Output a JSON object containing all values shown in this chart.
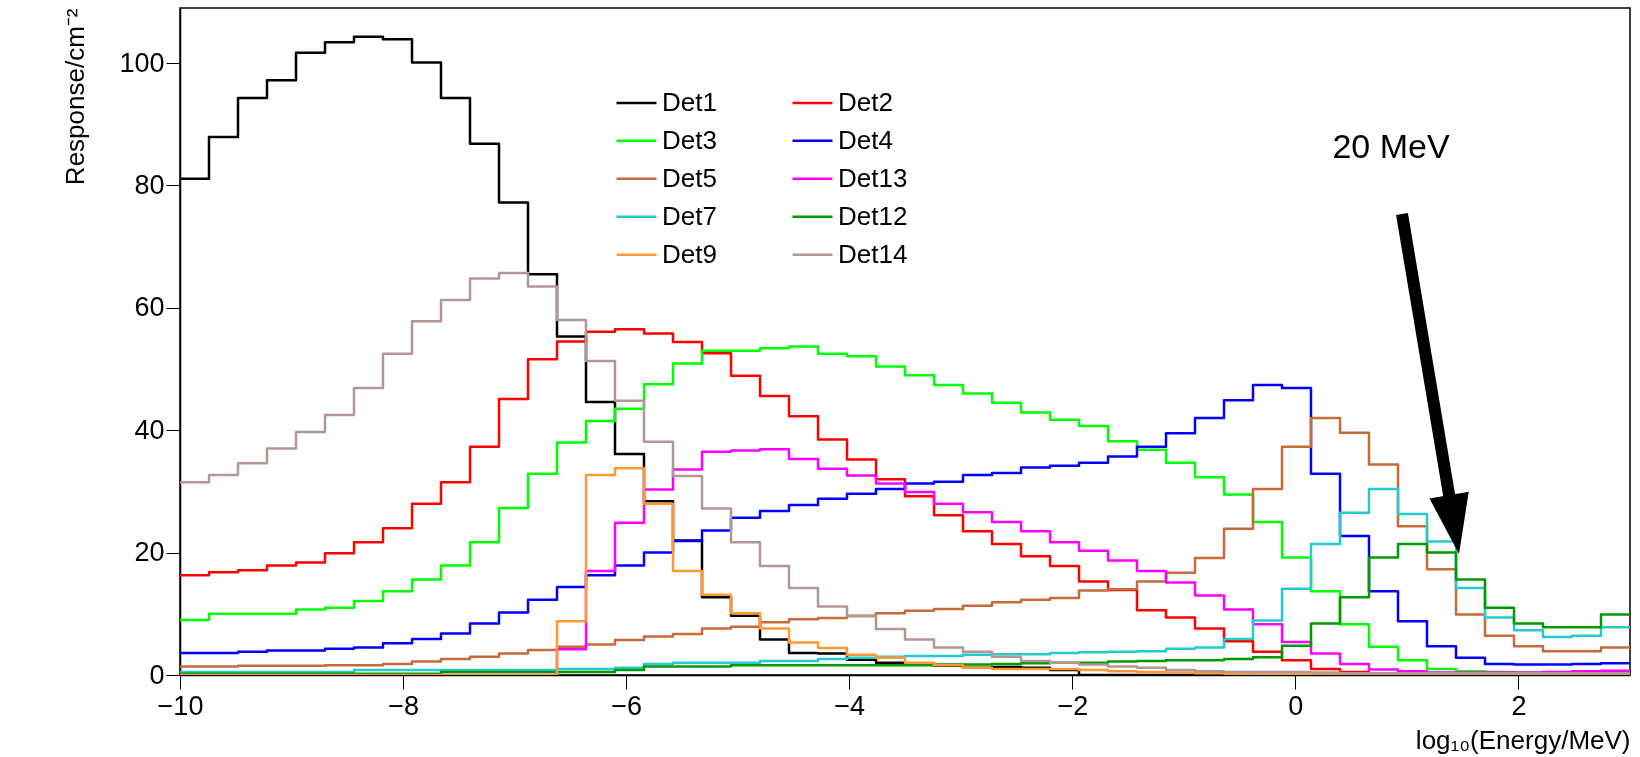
{
  "chart_data": {
    "type": "histogram",
    "xlabel": "log₁₀(Energy/MeV)",
    "ylabel": "Response/cm⁻²",
    "xlim": [
      -10,
      3
    ],
    "ylim": [
      0,
      109
    ],
    "xticks": [
      -10,
      -8,
      -6,
      -4,
      -2,
      0,
      2
    ],
    "yticks": [
      0,
      20,
      40,
      60,
      80,
      100
    ],
    "grid": false,
    "legend": "top",
    "bins": [
      -10,
      -9.74,
      -9.48,
      -9.22,
      -8.96,
      -8.7,
      -8.44,
      -8.18,
      -7.92,
      -7.66,
      -7.4,
      -7.14,
      -6.88,
      -6.62,
      -6.36,
      -6.1,
      -5.84,
      -5.58,
      -5.32,
      -5.06,
      -4.8,
      -4.54,
      -4.28,
      -4.02,
      -3.76,
      -3.5,
      -3.24,
      -2.98,
      -2.72,
      -2.46,
      -2.2,
      -1.94,
      -1.68,
      -1.42,
      -1.16,
      -0.9,
      -0.64,
      -0.38,
      -0.12,
      0.14,
      0.4,
      0.66,
      0.92,
      1.18,
      1.44,
      1.7,
      1.96,
      2.22,
      2.48,
      2.74,
      3
    ],
    "series": [
      {
        "name": "Det1",
        "color": "#000000",
        "values": [
          81.1,
          87.9,
          94.3,
          97.2,
          101.7,
          103.4,
          104.3,
          103.9,
          100.1,
          94.3,
          86.8,
          77.2,
          65.5,
          55.3,
          44.6,
          36.1,
          28.4,
          22.0,
          12.7,
          9.7,
          5.8,
          3.6,
          3.5,
          2.5,
          2.0,
          1.8,
          1.5,
          1.2,
          1.3,
          1.2,
          0.8,
          0,
          0,
          0,
          0,
          0,
          0,
          0,
          0,
          0,
          0,
          0,
          0,
          0,
          0,
          0,
          0,
          0,
          0,
          0
        ]
      },
      {
        "name": "Det2",
        "color": "#ff0000",
        "values": [
          16.3,
          16.8,
          17.1,
          17.9,
          18.4,
          19.9,
          21.7,
          24.0,
          28.0,
          31.5,
          37.3,
          45.1,
          51.6,
          54.5,
          56.1,
          56.5,
          55.8,
          54.4,
          52.6,
          48.9,
          45.6,
          42.3,
          38.5,
          35.2,
          32.0,
          29.2,
          26.1,
          23.5,
          21.4,
          19.4,
          17.8,
          15.3,
          13.9,
          10.6,
          9.4,
          7.6,
          5.5,
          3.8,
          2.4,
          1.0,
          0.5,
          0.3,
          0.2,
          0.2,
          0.1,
          0.1,
          0.1,
          0.1,
          0.1,
          0.1
        ]
      },
      {
        "name": "Det3",
        "color": "#00ff00",
        "values": [
          9.0,
          10.0,
          10.0,
          10.0,
          10.7,
          11.0,
          12.1,
          13.7,
          15.6,
          17.9,
          21.7,
          27.3,
          32.9,
          38.0,
          41.5,
          43.5,
          47.5,
          50.9,
          53.0,
          53.0,
          53.4,
          53.7,
          52.5,
          52.1,
          50.4,
          49.0,
          47.4,
          46.0,
          44.5,
          42.9,
          41.7,
          40.7,
          38.2,
          36.8,
          34.7,
          32.3,
          29.5,
          25.0,
          19.2,
          13.7,
          8.3,
          4.6,
          2.4,
          1.0,
          0.6,
          0.5,
          0.4,
          0.4,
          0.4,
          0.5
        ]
      },
      {
        "name": "Det4",
        "color": "#0000ff",
        "values": [
          3.6,
          3.6,
          3.8,
          4.0,
          4.0,
          4.3,
          4.5,
          5.2,
          5.9,
          6.8,
          8.4,
          10.2,
          12.3,
          14.4,
          16.3,
          17.9,
          20.0,
          21.9,
          23.6,
          25.7,
          26.8,
          27.8,
          28.8,
          29.6,
          30.4,
          31.3,
          31.6,
          32.7,
          33.0,
          33.9,
          34.2,
          34.7,
          35.7,
          37.3,
          39.5,
          42.0,
          44.9,
          47.4,
          46.9,
          32.9,
          22.7,
          13.7,
          8.8,
          4.7,
          2.8,
          1.8,
          1.7,
          1.7,
          1.8,
          1.9
        ]
      },
      {
        "name": "Det5",
        "color": "#c8693a",
        "values": [
          1.4,
          1.4,
          1.5,
          1.5,
          1.5,
          1.6,
          1.6,
          1.8,
          2.2,
          2.6,
          3.0,
          3.5,
          4.1,
          4.6,
          5.0,
          5.7,
          6.3,
          6.7,
          7.6,
          7.9,
          8.6,
          9.1,
          9.3,
          9.7,
          10.1,
          10.5,
          10.8,
          11.3,
          11.9,
          12.3,
          12.6,
          13.8,
          14.0,
          15.3,
          16.7,
          19.1,
          23.9,
          30.4,
          37.3,
          42.0,
          39.6,
          34.4,
          24.3,
          17.3,
          9.9,
          6.4,
          4.7,
          3.9,
          3.9,
          4.5
        ]
      },
      {
        "name": "Det13",
        "color": "#ff00ff",
        "values": [
          0,
          0,
          0,
          0,
          0,
          0,
          0,
          0,
          0,
          0,
          0,
          0,
          0,
          4.2,
          17.0,
          24.9,
          30.3,
          33.6,
          36.5,
          36.7,
          36.9,
          35.3,
          33.7,
          32.6,
          31.3,
          29.9,
          28.0,
          26.6,
          25.0,
          23.5,
          21.7,
          20.3,
          18.7,
          17.0,
          15.1,
          13.0,
          10.7,
          8.3,
          5.4,
          3.5,
          1.8,
          0.9,
          0.6,
          0.4,
          0.4,
          0.4,
          0.4,
          0.5,
          0.6,
          0.7
        ]
      },
      {
        "name": "Det7",
        "color": "#22cccc",
        "values": [
          0.5,
          0.5,
          0.5,
          0.5,
          0.5,
          0.5,
          0.8,
          0.8,
          0.8,
          0.8,
          0.8,
          0.8,
          0.8,
          1.0,
          1.0,
          1.2,
          1.8,
          2.0,
          2.0,
          2.0,
          2.3,
          2.3,
          2.6,
          2.8,
          3.0,
          3.1,
          3.1,
          3.3,
          3.4,
          3.4,
          3.6,
          3.7,
          3.8,
          3.9,
          4.3,
          4.5,
          5.9,
          8.9,
          14.1,
          21.4,
          26.5,
          30.4,
          26.3,
          21.8,
          14.2,
          9.4,
          7.3,
          6.2,
          6.4,
          7.8
        ]
      },
      {
        "name": "Det12",
        "color": "#009900",
        "values": [
          0.2,
          0.2,
          0.2,
          0.2,
          0.2,
          0.2,
          0.2,
          0.2,
          0.2,
          0.5,
          0.5,
          0.5,
          0.5,
          0.5,
          0.5,
          0.8,
          1.4,
          1.4,
          1.4,
          1.6,
          1.6,
          1.6,
          1.6,
          1.6,
          1.6,
          1.6,
          1.7,
          1.7,
          1.8,
          1.9,
          2.0,
          2.0,
          2.2,
          2.3,
          2.4,
          2.4,
          2.6,
          2.9,
          4.8,
          8.4,
          12.7,
          19.2,
          21.4,
          20.0,
          15.6,
          11.0,
          8.4,
          7.8,
          7.8,
          9.9
        ]
      },
      {
        "name": "Det9",
        "color": "#ff9933",
        "values": [
          0,
          0,
          0,
          0,
          0,
          0,
          0,
          0,
          0,
          0,
          0,
          0,
          0,
          8.8,
          32.7,
          33.8,
          28.0,
          17.0,
          13.1,
          10.1,
          7.6,
          5.3,
          4.4,
          3.3,
          2.8,
          2.0,
          1.6,
          1.2,
          1.0,
          1.0,
          1.0,
          0.8,
          0.6,
          0.5,
          0.4,
          0.3,
          0.2,
          0.1,
          0.1,
          0.1,
          0,
          0,
          0,
          0,
          0,
          0,
          0,
          0,
          0,
          0
        ]
      },
      {
        "name": "Det14",
        "color": "#b39696",
        "values": [
          31.5,
          32.7,
          34.6,
          37.0,
          39.7,
          42.5,
          46.9,
          52.5,
          57.8,
          61.3,
          64.8,
          65.7,
          63.5,
          58.0,
          51.3,
          44.8,
          38.1,
          32.5,
          27.2,
          21.7,
          17.8,
          14.2,
          11.2,
          9.6,
          7.5,
          5.8,
          4.5,
          3.8,
          3.0,
          2.3,
          2.0,
          1.7,
          1.4,
          1.2,
          0.8,
          0.6,
          0.5,
          0.5,
          0.5,
          0.4,
          0.3,
          0.3,
          0.3,
          0.3,
          0.3,
          0.3,
          0.3,
          0.3,
          0.3,
          0.3
        ]
      }
    ],
    "annotations": [
      "20 MeV"
    ]
  }
}
